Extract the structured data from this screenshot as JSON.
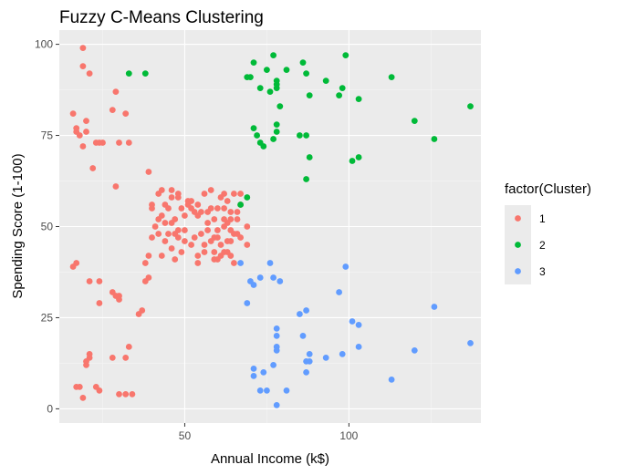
{
  "chart_data": {
    "type": "scatter",
    "title": "Fuzzy C-Means Clustering",
    "xlabel": "Annual Income (k$)",
    "ylabel": "Spending Score (1-100)",
    "xlim": [
      11.8,
      140.2
    ],
    "ylim": [
      -3.9,
      103.9
    ],
    "x_ticks": [
      50,
      100
    ],
    "x_tick_labels": [
      "50",
      "100"
    ],
    "y_ticks": [
      0,
      25,
      50,
      75,
      100
    ],
    "y_tick_labels": [
      "0",
      "25",
      "50",
      "75",
      "100"
    ],
    "grid": true,
    "legend": {
      "title": "factor(Cluster)",
      "placement": "right",
      "entries": [
        "1",
        "2",
        "3"
      ]
    },
    "colors": {
      "1": "#F8766D",
      "2": "#00BA38",
      "3": "#619CFF"
    },
    "series": [
      {
        "name": "1",
        "color": "#F8766D",
        "points": [
          [
            19,
            99
          ],
          [
            19,
            94
          ],
          [
            21,
            92
          ],
          [
            16,
            81
          ],
          [
            17,
            77
          ],
          [
            17,
            76
          ],
          [
            18,
            75
          ],
          [
            19,
            72
          ],
          [
            20,
            79
          ],
          [
            20,
            76
          ],
          [
            22,
            66
          ],
          [
            23,
            73
          ],
          [
            24,
            73
          ],
          [
            25,
            73
          ],
          [
            28,
            82
          ],
          [
            29,
            87
          ],
          [
            30,
            73
          ],
          [
            32,
            81
          ],
          [
            33,
            73
          ],
          [
            29,
            61
          ],
          [
            17,
            40
          ],
          [
            16,
            39
          ],
          [
            21,
            35
          ],
          [
            24,
            35
          ],
          [
            28,
            32
          ],
          [
            29,
            31
          ],
          [
            30,
            31
          ],
          [
            30,
            30
          ],
          [
            24,
            29
          ],
          [
            36,
            26
          ],
          [
            37,
            27
          ],
          [
            33,
            17
          ],
          [
            32,
            14
          ],
          [
            28,
            14
          ],
          [
            20,
            13
          ],
          [
            21,
            15
          ],
          [
            21,
            14
          ],
          [
            20,
            12
          ],
          [
            17,
            6
          ],
          [
            18,
            6
          ],
          [
            23,
            6
          ],
          [
            24,
            5
          ],
          [
            19,
            3
          ],
          [
            30,
            4
          ],
          [
            32,
            4
          ],
          [
            34,
            4
          ],
          [
            38,
            35
          ],
          [
            39,
            36
          ],
          [
            39,
            65
          ],
          [
            40,
            55
          ],
          [
            40,
            47
          ],
          [
            41,
            50
          ],
          [
            42,
            59
          ],
          [
            42,
            52
          ],
          [
            43,
            42
          ],
          [
            43,
            60
          ],
          [
            44,
            46
          ],
          [
            44,
            56
          ],
          [
            45,
            55
          ],
          [
            45,
            48
          ],
          [
            46,
            60
          ],
          [
            46,
            51
          ],
          [
            46,
            44
          ],
          [
            47,
            52
          ],
          [
            47,
            41
          ],
          [
            48,
            58
          ],
          [
            48,
            49
          ],
          [
            48,
            59
          ],
          [
            49,
            55
          ],
          [
            49,
            43
          ],
          [
            50,
            49
          ],
          [
            50,
            46
          ],
          [
            51,
            57
          ],
          [
            51,
            56
          ],
          [
            52,
            45
          ],
          [
            52,
            55
          ],
          [
            53,
            54
          ],
          [
            53,
            47
          ],
          [
            54,
            53
          ],
          [
            54,
            40
          ],
          [
            54,
            42
          ],
          [
            55,
            54
          ],
          [
            55,
            48
          ],
          [
            56,
            45
          ],
          [
            56,
            43
          ],
          [
            57,
            51
          ],
          [
            57,
            49
          ],
          [
            58,
            46
          ],
          [
            58,
            55
          ],
          [
            58,
            60
          ],
          [
            59,
            41
          ],
          [
            59,
            43
          ],
          [
            59,
            47
          ],
          [
            59,
            52
          ],
          [
            60,
            55
          ],
          [
            60,
            49
          ],
          [
            60,
            41
          ],
          [
            61,
            42
          ],
          [
            61,
            58
          ],
          [
            62,
            43
          ],
          [
            62,
            59
          ],
          [
            62,
            50
          ],
          [
            62,
            55
          ],
          [
            63,
            43
          ],
          [
            63,
            46
          ],
          [
            63,
            51
          ],
          [
            63,
            57
          ],
          [
            64,
            42
          ],
          [
            64,
            54
          ],
          [
            64,
            52
          ],
          [
            64,
            49
          ],
          [
            65,
            48
          ],
          [
            65,
            59
          ],
          [
            66,
            52
          ],
          [
            66,
            48
          ],
          [
            67,
            47
          ],
          [
            67,
            59
          ],
          [
            67,
            56
          ],
          [
            69,
            50
          ],
          [
            69,
            45
          ],
          [
            38,
            40
          ],
          [
            39,
            42
          ],
          [
            40,
            56
          ],
          [
            42,
            48
          ],
          [
            44,
            51
          ],
          [
            46,
            58
          ],
          [
            48,
            47
          ],
          [
            50,
            53
          ],
          [
            52,
            57
          ],
          [
            54,
            56
          ],
          [
            56,
            59
          ],
          [
            60,
            47
          ],
          [
            62,
            52
          ],
          [
            64,
            46
          ],
          [
            66,
            54
          ],
          [
            43,
            53
          ],
          [
            47,
            48
          ],
          [
            57,
            54
          ],
          [
            61,
            45
          ],
          [
            65,
            40
          ]
        ]
      },
      {
        "name": "2",
        "color": "#00BA38",
        "points": [
          [
            33,
            92
          ],
          [
            38,
            92
          ],
          [
            69,
            91
          ],
          [
            71,
            95
          ],
          [
            71,
            77
          ],
          [
            72,
            75
          ],
          [
            73,
            88
          ],
          [
            73,
            73
          ],
          [
            74,
            72
          ],
          [
            75,
            93
          ],
          [
            76,
            87
          ],
          [
            77,
            97
          ],
          [
            77,
            74
          ],
          [
            78,
            90
          ],
          [
            78,
            88
          ],
          [
            78,
            76
          ],
          [
            78,
            78
          ],
          [
            78,
            89
          ],
          [
            79,
            83
          ],
          [
            81,
            93
          ],
          [
            85,
            75
          ],
          [
            86,
            95
          ],
          [
            87,
            63
          ],
          [
            87,
            75
          ],
          [
            87,
            92
          ],
          [
            88,
            86
          ],
          [
            88,
            69
          ],
          [
            93,
            90
          ],
          [
            97,
            86
          ],
          [
            98,
            88
          ],
          [
            99,
            97
          ],
          [
            101,
            68
          ],
          [
            103,
            85
          ],
          [
            103,
            69
          ],
          [
            113,
            91
          ],
          [
            120,
            79
          ],
          [
            126,
            74
          ],
          [
            137,
            83
          ],
          [
            69,
            58
          ],
          [
            67,
            56
          ],
          [
            70,
            91
          ]
        ]
      },
      {
        "name": "3",
        "color": "#619CFF",
        "points": [
          [
            67,
            40
          ],
          [
            69,
            29
          ],
          [
            70,
            35
          ],
          [
            71,
            34
          ],
          [
            71,
            9
          ],
          [
            71,
            11
          ],
          [
            73,
            5
          ],
          [
            73,
            36
          ],
          [
            74,
            10
          ],
          [
            75,
            5
          ],
          [
            76,
            40
          ],
          [
            77,
            12
          ],
          [
            77,
            36
          ],
          [
            78,
            22
          ],
          [
            78,
            17
          ],
          [
            78,
            20
          ],
          [
            78,
            16
          ],
          [
            78,
            1
          ],
          [
            79,
            35
          ],
          [
            81,
            5
          ],
          [
            85,
            26
          ],
          [
            86,
            20
          ],
          [
            87,
            27
          ],
          [
            87,
            13
          ],
          [
            87,
            10
          ],
          [
            88,
            15
          ],
          [
            88,
            13
          ],
          [
            93,
            14
          ],
          [
            97,
            32
          ],
          [
            98,
            15
          ],
          [
            99,
            39
          ],
          [
            101,
            24
          ],
          [
            103,
            23
          ],
          [
            103,
            17
          ],
          [
            113,
            8
          ],
          [
            120,
            16
          ],
          [
            126,
            28
          ],
          [
            137,
            18
          ]
        ]
      }
    ]
  }
}
